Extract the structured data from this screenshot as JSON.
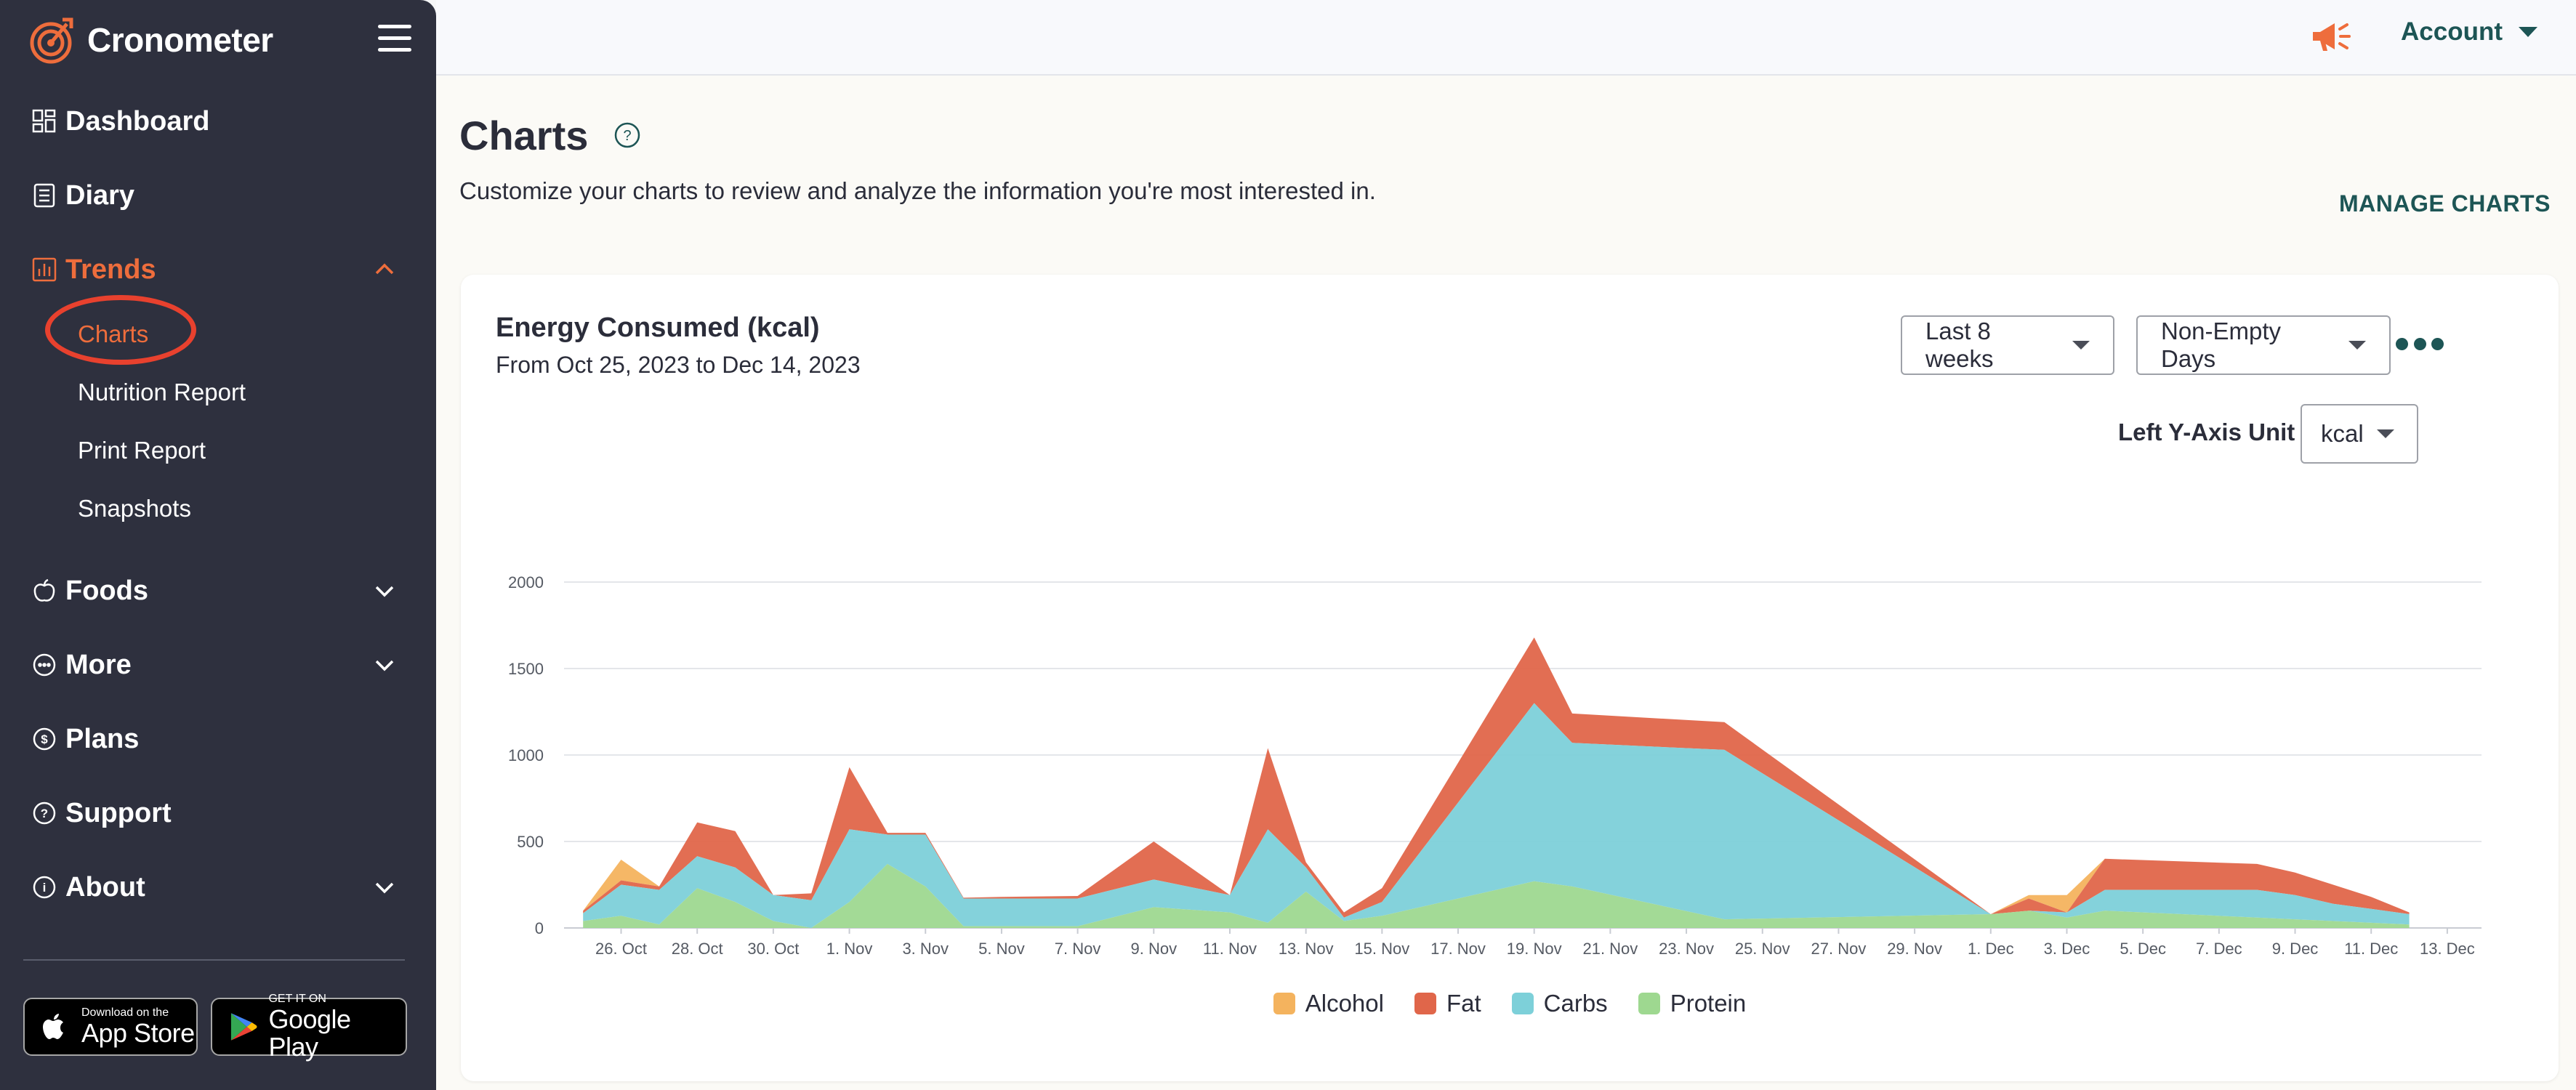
{
  "app": {
    "name": "Cronometer"
  },
  "sidebar": {
    "nav": [
      {
        "label": "Dashboard",
        "icon": "dashboard-grid-icon"
      },
      {
        "label": "Diary",
        "icon": "diary-list-icon"
      },
      {
        "label": "Trends",
        "icon": "bar-chart-icon",
        "active": true,
        "expanded": true
      },
      {
        "label": "Foods",
        "icon": "apple-icon"
      },
      {
        "label": "More",
        "icon": "more-circle-icon"
      },
      {
        "label": "Plans",
        "icon": "dollar-circle-icon"
      },
      {
        "label": "Support",
        "icon": "question-circle-icon"
      },
      {
        "label": "About",
        "icon": "info-circle-icon"
      }
    ],
    "trends_sub": [
      "Charts",
      "Nutrition Report",
      "Print Report",
      "Snapshots"
    ],
    "active_sub": "Charts",
    "stores": {
      "apple_small": "Download on the",
      "apple_big": "App Store",
      "google_small": "GET IT ON",
      "google_big": "Google Play"
    }
  },
  "topbar": {
    "account_label": "Account"
  },
  "main": {
    "title": "Charts",
    "description": "Customize your charts to review and analyze the information you're most interested in.",
    "manage_label": "MANAGE CHARTS"
  },
  "card": {
    "title": "Energy Consumed (kcal)",
    "subtitle": "From Oct 25, 2023 to Dec 14, 2023",
    "range_select": "Last 8 weeks",
    "days_select": "Non-Empty Days",
    "yaxis_label": "Left Y-Axis Unit",
    "yaxis_unit": "kcal"
  },
  "colors": {
    "accent": "#ee6d3c",
    "sidebar_bg": "#2e303e",
    "teal_text": "#1d5555",
    "alcohol": "#f4b35e",
    "fat": "#e0664a",
    "carbs": "#7dd0d9",
    "protein": "#9ed890"
  },
  "chart_data": {
    "type": "area",
    "stacked": true,
    "y_ticks": [
      0,
      500,
      1000,
      1500,
      2000
    ],
    "ylim": [
      0,
      2000
    ],
    "x_tick_labels": [
      "26. Oct",
      "28. Oct",
      "30. Oct",
      "1. Nov",
      "3. Nov",
      "5. Nov",
      "7. Nov",
      "9. Nov",
      "11. Nov",
      "13. Nov",
      "15. Nov",
      "17. Nov",
      "19. Nov",
      "21. Nov",
      "23. Nov",
      "25. Nov",
      "27. Nov",
      "29. Nov",
      "1. Dec",
      "3. Dec",
      "5. Dec",
      "7. Dec",
      "9. Dec",
      "11. Dec",
      "13. Dec"
    ],
    "x_day_range": [
      -0.5,
      49.9
    ],
    "days": [
      0,
      1,
      2,
      3,
      4,
      5,
      6,
      7,
      8,
      9,
      10,
      11,
      13,
      15,
      17,
      18,
      19,
      20,
      21,
      25,
      26,
      30,
      37,
      38,
      39,
      40,
      44,
      45,
      46,
      47,
      48
    ],
    "series": [
      {
        "name": "Protein",
        "values": [
          40,
          70,
          20,
          230,
          150,
          40,
          0,
          150,
          370,
          240,
          10,
          10,
          10,
          120,
          90,
          30,
          210,
          40,
          70,
          270,
          240,
          50,
          80,
          100,
          60,
          100,
          60,
          50,
          40,
          30,
          20
        ]
      },
      {
        "name": "Carbs",
        "values": [
          45,
          180,
          200,
          185,
          200,
          150,
          160,
          420,
          170,
          300,
          160,
          160,
          160,
          160,
          100,
          540,
          140,
          20,
          80,
          1030,
          830,
          980,
          0,
          0,
          30,
          120,
          160,
          140,
          100,
          80,
          60
        ]
      },
      {
        "name": "Fat",
        "values": [
          15,
          25,
          20,
          195,
          210,
          0,
          40,
          360,
          10,
          10,
          5,
          10,
          15,
          220,
          0,
          470,
          30,
          30,
          80,
          380,
          170,
          160,
          0,
          70,
          0,
          180,
          150,
          130,
          110,
          70,
          10
        ]
      },
      {
        "name": "Alcohol",
        "values": [
          0,
          120,
          0,
          0,
          0,
          0,
          0,
          0,
          0,
          0,
          0,
          0,
          0,
          0,
          0,
          0,
          0,
          0,
          0,
          0,
          0,
          0,
          0,
          20,
          100,
          0,
          0,
          0,
          0,
          0,
          0
        ]
      }
    ],
    "legend": [
      "Alcohol",
      "Fat",
      "Carbs",
      "Protein"
    ],
    "grid": true,
    "legend_position": "bottom-center"
  }
}
